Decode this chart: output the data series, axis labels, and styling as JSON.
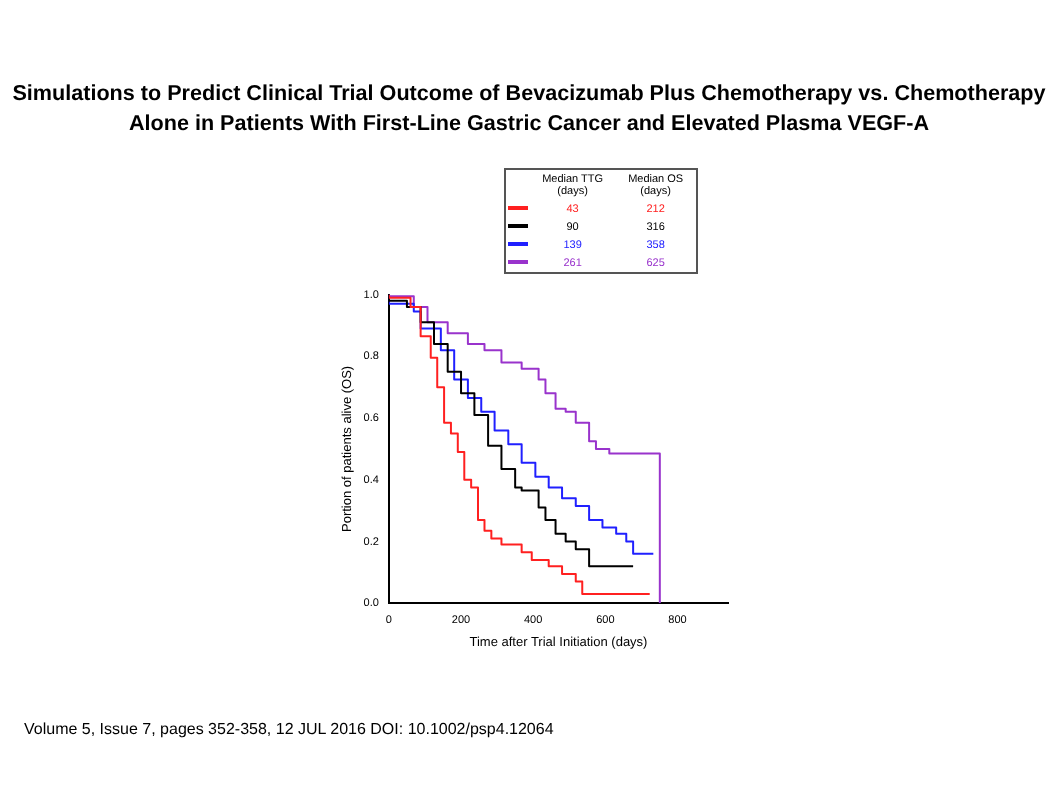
{
  "chart_data": {
    "type": "step",
    "title": "Simulations to Predict Clinical  Trial Outcome of Bevacizumab Plus Chemotherapy vs. Chemotherapy Alone in Patients With First-Line Gastric Cancer and Elevated Plasma VEGF-A",
    "xlabel": "Time after Trial Initiation (days)",
    "ylabel": "Portion of patients alive (OS)",
    "legend_title": "Median TTG (days)",
    "annotations": [
      "Median OS (days)",
      "212",
      "316",
      "358",
      "625",
      "Volume 5, Issue 7, pages 352-358, 12 JUL 2016 DOI: 10.1002/psp4.12064"
    ],
    "series": [
      {
        "name": "43",
        "color": "#ff2020",
        "x": [
          0,
          60,
          88,
          116,
          134,
          153,
          172,
          191,
          209,
          228,
          247,
          265,
          284,
          312,
          368,
          396,
          443,
          480,
          518,
          536,
          549,
          723
        ],
        "values": [
          1,
          0.99,
          0.96,
          0.865,
          0.795,
          0.7,
          0.585,
          0.55,
          0.49,
          0.4,
          0.375,
          0.27,
          0.235,
          0.21,
          0.19,
          0.165,
          0.14,
          0.12,
          0.095,
          0.07,
          0.03,
          0.03
        ]
      },
      {
        "name": "90",
        "color": "#000000",
        "x": [
          0,
          50,
          88,
          125,
          163,
          200,
          237,
          275,
          312,
          350,
          368,
          415,
          434,
          462,
          490,
          518,
          555,
          579,
          677
        ],
        "values": [
          1,
          0.98,
          0.96,
          0.91,
          0.84,
          0.75,
          0.68,
          0.61,
          0.51,
          0.435,
          0.375,
          0.365,
          0.31,
          0.27,
          0.225,
          0.2,
          0.175,
          0.12,
          0.12
        ]
      },
      {
        "name": "139",
        "color": "#2020ff",
        "x": [
          0,
          69,
          88,
          144,
          181,
          219,
          256,
          293,
          331,
          368,
          406,
          443,
          480,
          518,
          555,
          592,
          630,
          658,
          677,
          686,
          733
        ],
        "values": [
          1,
          0.97,
          0.945,
          0.89,
          0.82,
          0.725,
          0.665,
          0.62,
          0.56,
          0.515,
          0.455,
          0.41,
          0.375,
          0.34,
          0.315,
          0.27,
          0.245,
          0.225,
          0.2,
          0.16,
          0.16
        ]
      },
      {
        "name": "261",
        "color": "#9933cc",
        "x": [
          0,
          69,
          107,
          163,
          219,
          265,
          312,
          368,
          415,
          434,
          462,
          490,
          518,
          555,
          574,
          611,
          630,
          751,
          751
        ],
        "values": [
          1,
          0.995,
          0.96,
          0.91,
          0.875,
          0.84,
          0.82,
          0.78,
          0.76,
          0.725,
          0.68,
          0.63,
          0.62,
          0.585,
          0.525,
          0.5,
          0.485,
          0.485,
          0
        ]
      }
    ],
    "xlim": [
      0,
      940
    ],
    "xticks": [
      0,
      200,
      400,
      600,
      800
    ],
    "ylim": [
      0,
      1
    ],
    "yticks": [
      {
        "value": 0,
        "label": "0.0"
      },
      {
        "value": 0.2,
        "label": "0.2"
      },
      {
        "value": 0.4,
        "label": "0.4"
      },
      {
        "value": 0.6,
        "label": "0.6"
      },
      {
        "value": 0.8,
        "label": "0.8"
      },
      {
        "value": 1,
        "label": "1.0"
      }
    ],
    "grid": false,
    "legend": "top right",
    "marker": "none",
    "line_style": "solid"
  }
}
